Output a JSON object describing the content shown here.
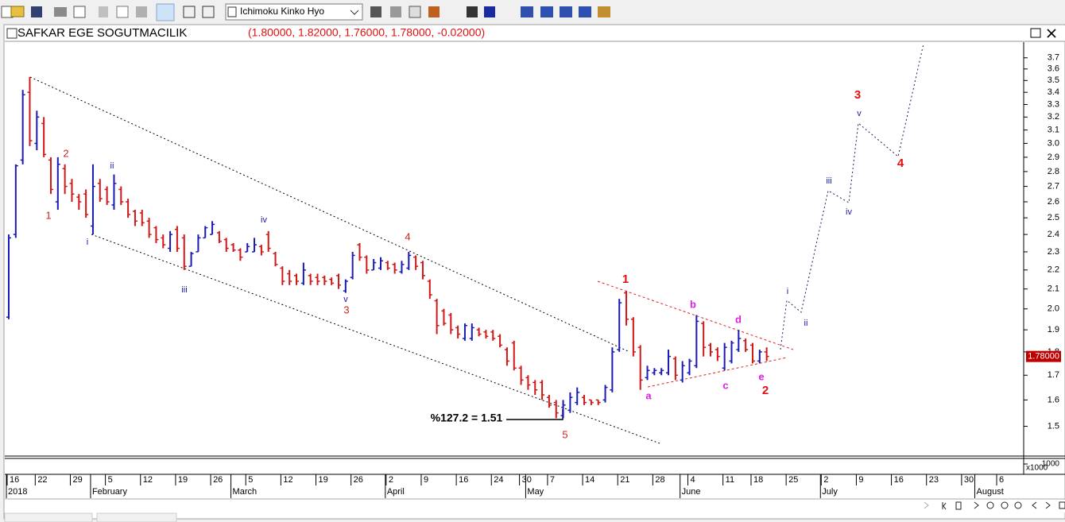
{
  "toolbar": {
    "indicator": "Ichimoku Kinko Hyo"
  },
  "chart_data": {
    "type": "ohlc",
    "title": "SAFKAR EGE SOGUTMACILIK",
    "subtitle": "(1.80000, 1.82000, 1.76000, 1.78000, -0.02000)",
    "up_color": "#1a1ab4",
    "down_color": "#d01818",
    "log_scale": true,
    "ylim": [
      1.4,
      3.83
    ],
    "yticks": [
      1.5,
      1.6,
      1.7,
      1.8,
      1.9,
      {
        "value": 2,
        "label": "2.0"
      },
      2.1,
      2.2,
      2.3,
      2.4,
      2.5,
      2.6,
      2.7,
      2.8,
      2.9,
      {
        "value": 3,
        "label": "3.0"
      },
      3.1,
      3.2,
      3.3,
      3.4,
      3.5,
      3.6,
      3.7
    ],
    "last_price": {
      "value": 1.78,
      "label": "1.78000"
    },
    "volume_unit": "x1000",
    "volume_ticks": [
      1000
    ],
    "categories": [
      "16",
      null,
      null,
      null,
      "22",
      null,
      null,
      null,
      null,
      "29",
      null,
      null,
      null,
      null,
      "5",
      null,
      null,
      null,
      null,
      "12",
      null,
      null,
      null,
      null,
      "19",
      null,
      null,
      null,
      null,
      "26",
      null,
      null,
      null,
      null,
      "5",
      null,
      null,
      null,
      null,
      "12",
      null,
      null,
      null,
      null,
      "19",
      null,
      null,
      null,
      null,
      "26",
      null,
      null,
      null,
      null,
      "2",
      null,
      null,
      null,
      null,
      "9",
      null,
      null,
      null,
      null,
      "16",
      null,
      null,
      null,
      null,
      "24",
      null,
      null,
      null,
      "30",
      null,
      null,
      null,
      "7",
      null,
      null,
      null,
      null,
      "14",
      null,
      null,
      null,
      null,
      "21",
      null,
      null,
      null,
      null,
      "28",
      null,
      null,
      null,
      null,
      "4",
      null,
      null,
      null,
      null,
      "11",
      null,
      null,
      null,
      "18",
      null,
      null,
      null,
      null,
      "25",
      null,
      null,
      null,
      null,
      "2",
      null,
      null,
      null,
      null,
      "9",
      null,
      null,
      null,
      null,
      "16",
      null,
      null,
      null,
      null,
      "23",
      null,
      null,
      null,
      null,
      "30",
      null,
      null,
      null,
      null,
      "6",
      null,
      null,
      null
    ],
    "months": [
      "2018",
      null,
      null,
      null,
      null,
      null,
      null,
      null,
      null,
      null,
      null,
      null,
      "February",
      null,
      null,
      null,
      null,
      null,
      null,
      null,
      null,
      null,
      null,
      null,
      null,
      null,
      null,
      null,
      null,
      null,
      null,
      null,
      "March",
      null,
      null,
      null,
      null,
      null,
      null,
      null,
      null,
      null,
      null,
      null,
      null,
      null,
      null,
      null,
      null,
      null,
      null,
      null,
      null,
      null,
      "April",
      null,
      null,
      null,
      null,
      null,
      null,
      null,
      null,
      null,
      null,
      null,
      null,
      null,
      null,
      null,
      null,
      null,
      null,
      null,
      "May",
      null,
      null,
      null,
      null,
      null,
      null,
      null,
      null,
      null,
      null,
      null,
      null,
      null,
      null,
      null,
      null,
      null,
      null,
      null,
      null,
      null,
      "June",
      null,
      null,
      null,
      null,
      null,
      null,
      null,
      null,
      null,
      null,
      null,
      null,
      null,
      null,
      null,
      null,
      null,
      null,
      null,
      "July",
      null,
      null,
      null,
      null,
      null,
      null,
      null,
      null,
      null,
      null,
      null,
      null,
      null,
      null,
      null,
      null,
      null,
      null,
      null,
      null,
      null,
      "August",
      null,
      null,
      null,
      null,
      null,
      null
    ],
    "ohlc": [
      [
        1.96,
        2.4,
        1.95,
        2.38
      ],
      [
        2.4,
        2.85,
        2.38,
        2.84
      ],
      [
        2.88,
        3.42,
        2.85,
        3.38
      ],
      [
        3.4,
        3.53,
        2.98,
        3.02
      ],
      [
        3.0,
        3.25,
        2.95,
        3.2
      ],
      [
        3.15,
        3.2,
        2.9,
        2.92
      ],
      [
        2.88,
        2.9,
        2.65,
        2.68
      ],
      [
        2.6,
        2.9,
        2.55,
        2.85
      ],
      [
        2.82,
        2.85,
        2.65,
        2.7
      ],
      [
        2.72,
        2.75,
        2.6,
        2.65
      ],
      [
        2.63,
        2.65,
        2.55,
        2.6
      ],
      [
        2.65,
        2.68,
        2.5,
        2.52
      ],
      [
        2.45,
        2.85,
        2.4,
        2.7
      ],
      [
        2.72,
        2.75,
        2.6,
        2.62
      ],
      [
        2.68,
        2.7,
        2.58,
        2.6
      ],
      [
        2.58,
        2.78,
        2.55,
        2.72
      ],
      [
        2.68,
        2.7,
        2.58,
        2.6
      ],
      [
        2.6,
        2.62,
        2.5,
        2.52
      ],
      [
        2.54,
        2.55,
        2.45,
        2.48
      ],
      [
        2.53,
        2.55,
        2.45,
        2.47
      ],
      [
        2.48,
        2.5,
        2.38,
        2.4
      ],
      [
        2.44,
        2.45,
        2.35,
        2.37
      ],
      [
        2.38,
        2.4,
        2.32,
        2.34
      ],
      [
        2.32,
        2.42,
        2.3,
        2.4
      ],
      [
        2.43,
        2.45,
        2.3,
        2.32
      ],
      [
        2.38,
        2.4,
        2.2,
        2.22
      ],
      [
        2.22,
        2.3,
        2.22,
        2.29
      ],
      [
        2.3,
        2.4,
        2.3,
        2.38
      ],
      [
        2.38,
        2.45,
        2.38,
        2.44
      ],
      [
        2.4,
        2.48,
        2.4,
        2.46
      ],
      [
        2.41,
        2.42,
        2.35,
        2.36
      ],
      [
        2.37,
        2.38,
        2.3,
        2.32
      ],
      [
        2.34,
        2.35,
        2.3,
        2.31
      ],
      [
        2.31,
        2.32,
        2.25,
        2.27
      ],
      [
        2.3,
        2.35,
        2.3,
        2.33
      ],
      [
        2.3,
        2.38,
        2.3,
        2.34
      ],
      [
        2.33,
        2.34,
        2.28,
        2.3
      ],
      [
        2.4,
        2.42,
        2.3,
        2.32
      ],
      [
        2.29,
        2.3,
        2.22,
        2.23
      ],
      [
        2.21,
        2.22,
        2.12,
        2.14
      ],
      [
        2.18,
        2.2,
        2.12,
        2.14
      ],
      [
        2.17,
        2.18,
        2.12,
        2.14
      ],
      [
        2.13,
        2.24,
        2.12,
        2.2
      ],
      [
        2.17,
        2.18,
        2.12,
        2.14
      ],
      [
        2.16,
        2.18,
        2.12,
        2.14
      ],
      [
        2.16,
        2.17,
        2.12,
        2.14
      ],
      [
        2.15,
        2.16,
        2.12,
        2.13
      ],
      [
        2.17,
        2.18,
        2.1,
        2.12
      ],
      [
        2.09,
        2.15,
        2.08,
        2.14
      ],
      [
        2.16,
        2.3,
        2.15,
        2.28
      ],
      [
        2.34,
        2.35,
        2.25,
        2.27
      ],
      [
        2.27,
        2.28,
        2.18,
        2.2
      ],
      [
        2.2,
        2.26,
        2.2,
        2.24
      ],
      [
        2.21,
        2.27,
        2.2,
        2.25
      ],
      [
        2.24,
        2.25,
        2.2,
        2.21
      ],
      [
        2.23,
        2.24,
        2.18,
        2.2
      ],
      [
        2.19,
        2.25,
        2.18,
        2.23
      ],
      [
        2.21,
        2.3,
        2.2,
        2.28
      ],
      [
        2.27,
        2.28,
        2.2,
        2.22
      ],
      [
        2.24,
        2.25,
        2.15,
        2.17
      ],
      [
        2.14,
        2.15,
        2.05,
        2.07
      ],
      [
        2.04,
        2.05,
        1.88,
        1.92
      ],
      [
        1.99,
        2.0,
        1.92,
        1.93
      ],
      [
        1.97,
        1.98,
        1.88,
        1.9
      ],
      [
        1.91,
        1.92,
        1.86,
        1.88
      ],
      [
        1.86,
        1.93,
        1.85,
        1.92
      ],
      [
        1.86,
        1.93,
        1.85,
        1.91
      ],
      [
        1.9,
        1.91,
        1.87,
        1.88
      ],
      [
        1.89,
        1.9,
        1.86,
        1.87
      ],
      [
        1.89,
        1.9,
        1.85,
        1.86
      ],
      [
        1.87,
        1.88,
        1.82,
        1.83
      ],
      [
        1.81,
        1.82,
        1.74,
        1.76
      ],
      [
        1.84,
        1.85,
        1.72,
        1.73
      ],
      [
        1.73,
        1.74,
        1.66,
        1.68
      ],
      [
        1.69,
        1.7,
        1.64,
        1.66
      ],
      [
        1.67,
        1.68,
        1.62,
        1.64
      ],
      [
        1.67,
        1.68,
        1.6,
        1.62
      ],
      [
        1.61,
        1.62,
        1.57,
        1.58
      ],
      [
        1.59,
        1.6,
        1.53,
        1.55
      ],
      [
        1.54,
        1.6,
        1.53,
        1.58
      ],
      [
        1.56,
        1.63,
        1.55,
        1.61
      ],
      [
        1.59,
        1.65,
        1.58,
        1.63
      ],
      [
        1.61,
        1.62,
        1.58,
        1.59
      ],
      [
        1.6,
        1.6,
        1.58,
        1.59
      ],
      [
        1.6,
        1.6,
        1.58,
        1.59
      ],
      [
        1.6,
        1.66,
        1.59,
        1.65
      ],
      [
        1.64,
        1.82,
        1.63,
        1.8
      ],
      [
        1.81,
        2.05,
        1.8,
        2.03
      ],
      [
        2.08,
        2.09,
        1.92,
        1.95
      ],
      [
        1.95,
        1.96,
        1.78,
        1.8
      ],
      [
        1.82,
        1.83,
        1.64,
        1.68
      ],
      [
        1.69,
        1.74,
        1.68,
        1.72
      ],
      [
        1.71,
        1.73,
        1.7,
        1.72
      ],
      [
        1.71,
        1.73,
        1.7,
        1.72
      ],
      [
        1.71,
        1.81,
        1.7,
        1.78
      ],
      [
        1.77,
        1.78,
        1.68,
        1.7
      ],
      [
        1.68,
        1.76,
        1.67,
        1.74
      ],
      [
        1.71,
        1.77,
        1.7,
        1.76
      ],
      [
        1.74,
        1.97,
        1.73,
        1.94
      ],
      [
        1.93,
        1.94,
        1.78,
        1.82
      ],
      [
        1.83,
        1.84,
        1.78,
        1.8
      ],
      [
        1.81,
        1.82,
        1.76,
        1.78
      ],
      [
        1.73,
        1.84,
        1.72,
        1.82
      ],
      [
        1.76,
        1.85,
        1.75,
        1.84
      ],
      [
        1.81,
        1.9,
        1.8,
        1.86
      ],
      [
        1.85,
        1.86,
        1.8,
        1.81
      ],
      [
        1.83,
        1.84,
        1.75,
        1.76
      ],
      [
        1.76,
        1.81,
        1.75,
        1.8
      ],
      [
        1.8,
        1.82,
        1.76,
        1.78
      ],
      null,
      null,
      null,
      null,
      null,
      null,
      null,
      null,
      null,
      null,
      null,
      null,
      null,
      null,
      null,
      null,
      null,
      null,
      null,
      null,
      null,
      null,
      null,
      null,
      null,
      null,
      null,
      null,
      null,
      null,
      null,
      null,
      null,
      null,
      null,
      null
    ],
    "annotations": [
      {
        "text": "2",
        "color": "#d42020"
      },
      {
        "text": "1",
        "color": "#d42020"
      },
      {
        "text": "4",
        "color": "#d42020"
      },
      {
        "text": "3",
        "color": "#d42020"
      },
      {
        "text": "5",
        "color": "#d42020"
      },
      {
        "text": "ii",
        "color": "#1a1aa8"
      },
      {
        "text": "i",
        "color": "#1a1aa8"
      },
      {
        "text": "iii",
        "color": "#1a1aa8"
      },
      {
        "text": "iv",
        "color": "#1a1aa8"
      },
      {
        "text": "v",
        "color": "#1a1aa8"
      },
      {
        "text": "1",
        "color": "#e01010"
      },
      {
        "text": "2",
        "color": "#e01010"
      },
      {
        "text": "3",
        "color": "#e01010"
      },
      {
        "text": "4",
        "color": "#e01010"
      },
      {
        "text": "a",
        "color": "#e020e0"
      },
      {
        "text": "b",
        "color": "#e020e0"
      },
      {
        "text": "c",
        "color": "#e020e0"
      },
      {
        "text": "d",
        "color": "#e020e0"
      },
      {
        "text": "e",
        "color": "#e020e0"
      },
      {
        "text": "i",
        "color": "#1a1aa8"
      },
      {
        "text": "ii",
        "color": "#1a1aa8"
      },
      {
        "text": "iii",
        "color": "#1a1aa8"
      },
      {
        "text": "iv",
        "color": "#1a1aa8"
      },
      {
        "text": "v",
        "color": "#1a1aa8"
      },
      {
        "text": "%127.2 = 1.51",
        "color": "#000000"
      }
    ]
  }
}
